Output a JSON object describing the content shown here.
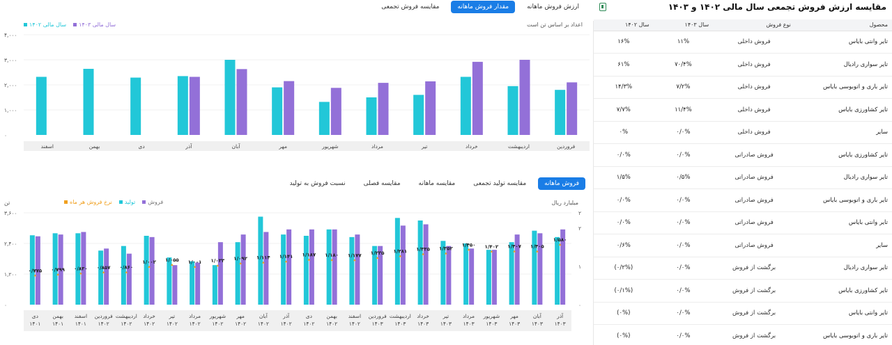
{
  "colors": {
    "purple": "#9370d8",
    "cyan": "#22c7d8",
    "orange": "#f0a020",
    "blue": "#1a7de6"
  },
  "top_tabs": [
    "ارزش فروش ماهانه",
    "مقدار فروش ماهانه",
    "مقایسه فروش تجمعی"
  ],
  "top_chart": {
    "note": "اعداد بر اساس تن است",
    "legend": [
      "سال مالی ۱۴۰۳",
      "سال مالی ۱۴۰۲"
    ]
  },
  "bottom_tabs": [
    "فروش ماهانه",
    "مقایسه تولید تجمعی",
    "مقایسه ماهانه",
    "مقایسه فصلی",
    "نسبت فروش به تولید"
  ],
  "bottom_chart": {
    "legend": [
      "فروش",
      "تولید",
      "نرخ فروش هر ماه"
    ],
    "left_unit": "تن",
    "right_unit": "میلیارد ریال"
  },
  "table": {
    "title": "مقایسه ارزش فروش تجمعی سال مالی ۱۴۰۲ و ۱۴۰۳",
    "excel_icon": "excel-icon",
    "headers": [
      "محصول",
      "نوع فروش",
      "سال ۱۴۰۳",
      "سال ۱۴۰۲"
    ],
    "rows": [
      [
        "تایر وانتی بایاس",
        "فروش داخلی",
        "۱۱%",
        "۱۶%"
      ],
      [
        "تایر سواری رادیال",
        "فروش داخلی",
        "۷۰/۴%",
        "۶۱%"
      ],
      [
        "تایر باری و اتوبوسی بایاس",
        "فروش داخلی",
        "۷/۲%",
        "۱۴/۳%"
      ],
      [
        "تایر کشاورزی بایاس",
        "فروش داخلی",
        "۱۱/۴%",
        "۷/۷%"
      ],
      [
        "سایر",
        "فروش داخلی",
        "۰/۰%",
        "۰%"
      ],
      [
        "تایر کشاورزی بایاس",
        "فروش صادراتی",
        "۰/۰%",
        "۰/۰%"
      ],
      [
        "تایر سواری رادیال",
        "فروش صادراتی",
        "۰/۵%",
        "۱/۵%"
      ],
      [
        "تایر باری و اتوبوسی بایاس",
        "فروش صادراتی",
        "۰/۰%",
        "۰/۰%"
      ],
      [
        "تایر وانتی بایاس",
        "فروش صادراتی",
        "۰/۰%",
        "۰/۰%"
      ],
      [
        "سایر",
        "فروش صادراتی",
        "۰/۰%",
        "۰/۶%"
      ],
      [
        "تایر سواری رادیال",
        "برگشت از فروش",
        "۰/۰%",
        "(۰/۲%)"
      ],
      [
        "تایر کشاورزی بایاس",
        "برگشت از فروش",
        "۰/۰%",
        "(۰/۱%)"
      ],
      [
        "تایر وانتی بایاس",
        "برگشت از فروش",
        "۰/۰%",
        "(۰%)"
      ],
      [
        "تایر باری و اتوبوسی بایاس",
        "برگشت از فروش",
        "۰/۰%",
        "(۰%)"
      ]
    ]
  },
  "chart_data": [
    {
      "type": "bar",
      "categories": [
        "فروردین",
        "اردیبهشت",
        "خرداد",
        "تیر",
        "مرداد",
        "شهریور",
        "مهر",
        "آبان",
        "آذر",
        "دی",
        "بهمن",
        "اسفند"
      ],
      "series": [
        {
          "name": "سال مالی ۱۴۰۲",
          "values": [
            1800,
            1950,
            2320,
            1600,
            1500,
            1320,
            1900,
            3000,
            2350,
            2290,
            2640,
            2320
          ]
        },
        {
          "name": "سال مالی ۱۴۰۳",
          "values": [
            2100,
            3000,
            2920,
            2140,
            2080,
            1880,
            2150,
            2630,
            2320,
            null,
            null,
            null
          ]
        }
      ],
      "yticks": [
        "۰",
        "۱,۰۰۰",
        "۲,۰۰۰",
        "۳,۰۰۰",
        "۴,۰۰۰"
      ],
      "ylim": [
        0,
        4000
      ]
    },
    {
      "type": "bar",
      "categories": [
        "دی ۱۴۰۱",
        "بهمن ۱۴۰۱",
        "اسفند ۱۴۰۱",
        "فروردین ۱۴۰۲",
        "اردیبهشت ۱۴۰۲",
        "خرداد ۱۴۰۲",
        "تیر ۱۴۰۲",
        "مرداد ۱۴۰۲",
        "شهریور ۱۴۰۲",
        "مهر ۱۴۰۲",
        "آبان ۱۴۰۲",
        "آذر ۱۴۰۲",
        "دی ۱۴۰۲",
        "بهمن ۱۴۰۲",
        "اسفند ۱۴۰۲",
        "فروردین ۱۴۰۳",
        "اردیبهشت ۱۴۰۳",
        "خرداد ۱۴۰۳",
        "تیر ۱۴۰۳",
        "مرداد ۱۴۰۳",
        "شهریور ۱۴۰۳",
        "مهر ۱۴۰۳",
        "آبان ۱۴۰۳",
        "آذر ۱۴۰۳"
      ],
      "cat_lines": [
        [
          "دی",
          "۱۴۰۱"
        ],
        [
          "بهمن",
          "۱۴۰۱"
        ],
        [
          "اسفند",
          "۱۴۰۱"
        ],
        [
          "فروردین",
          "۱۴۰۲"
        ],
        [
          "اردیبهشت",
          "۱۴۰۲"
        ],
        [
          "خرداد",
          "۱۴۰۲"
        ],
        [
          "تیر",
          "۱۴۰۲"
        ],
        [
          "مرداد",
          "۱۴۰۲"
        ],
        [
          "شهریور",
          "۱۴۰۲"
        ],
        [
          "مهر",
          "۱۴۰۲"
        ],
        [
          "آبان",
          "۱۴۰۲"
        ],
        [
          "آذر",
          "۱۴۰۲"
        ],
        [
          "دی",
          "۱۴۰۲"
        ],
        [
          "بهمن",
          "۱۴۰۲"
        ],
        [
          "اسفند",
          "۱۴۰۲"
        ],
        [
          "فروردین",
          "۱۴۰۳"
        ],
        [
          "اردیبهشت",
          "۱۴۰۳"
        ],
        [
          "خرداد",
          "۱۴۰۳"
        ],
        [
          "تیر",
          "۱۴۰۳"
        ],
        [
          "مرداد",
          "۱۴۰۳"
        ],
        [
          "شهریور",
          "۱۴۰۳"
        ],
        [
          "مهر",
          "۱۴۰۳"
        ],
        [
          "آبان",
          "۱۴۰۳"
        ],
        [
          "آذر",
          "۱۴۰۳"
        ]
      ],
      "series": [
        {
          "name": "فروش",
          "values": [
            2680,
            2750,
            2850,
            2200,
            2000,
            2650,
            1550,
            1650,
            2450,
            2750,
            2850,
            2950,
            2950,
            2950,
            2750,
            2300,
            3100,
            3150,
            2300,
            2200,
            2150,
            2750,
            2800,
            2950
          ]
        },
        {
          "name": "تولید",
          "values": [
            2720,
            2800,
            2800,
            2120,
            2300,
            2700,
            1850,
            1700,
            1550,
            2450,
            3450,
            2750,
            2700,
            2950,
            2650,
            2300,
            3400,
            3300,
            2500,
            2400,
            2150,
            2450,
            2900,
            2650
          ]
        }
      ],
      "rate": [
        "۰/۷۷۵",
        "۰/۷۹۹",
        "۰/۸۳۰",
        "۰/۸۵۷",
        "۰/۸۶۰",
        "۱/۰۰۲",
        "۱/۰۵۵",
        "۱/۰۰۱",
        "۱/۰۳۳",
        "۱/۰۹۲",
        "۱/۱۱۴",
        "۱/۱۴۱",
        "۱/۱۸۷",
        "۱/۱۸۰",
        "۱/۱۷۷",
        "۱/۲۳۵",
        "۱/۲۸۱",
        "۱/۳۳۵",
        "۱/۳۵۲",
        "۱/۴۵۰",
        "۱/۴۰۲",
        "۱/۴۰۷",
        "۱/۴۰۵",
        "۱/۵۸۰"
      ],
      "rate_values": [
        0.775,
        0.799,
        0.83,
        0.857,
        0.86,
        1.002,
        1.055,
        1.001,
        1.033,
        1.092,
        1.114,
        1.141,
        1.187,
        1.18,
        1.177,
        1.235,
        1.281,
        1.335,
        1.352,
        1.45,
        1.402,
        1.407,
        1.405,
        1.58
      ],
      "yticks_left": [
        "۰",
        "۱,۲۰۰",
        "۲,۴۰۰",
        "۳,۶۰۰"
      ],
      "ylim_left": [
        0,
        3600
      ],
      "yticks_right": [
        "۰",
        "۱",
        "۲",
        "۲"
      ],
      "ylim_right": [
        0,
        2.4
      ]
    }
  ]
}
